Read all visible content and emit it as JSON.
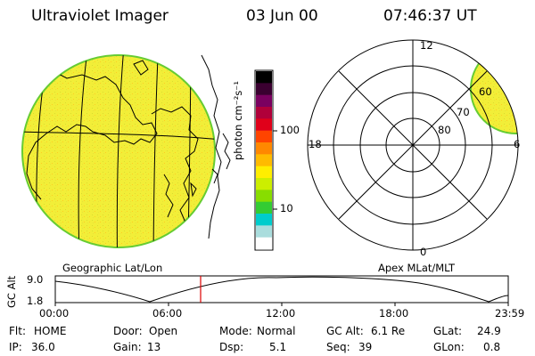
{
  "header": {
    "title": "Ultraviolet Imager",
    "date": "03 Jun 00",
    "time": "07:46:37 UT"
  },
  "colorbar": {
    "unit_label": "photon cm⁻²s⁻¹",
    "ticks": [
      "100",
      "10"
    ],
    "colors": [
      "#000000",
      "#3a0030",
      "#7a0060",
      "#b0003a",
      "#e0001a",
      "#ff4400",
      "#ff8800",
      "#ffbb00",
      "#ffee00",
      "#ccee00",
      "#88dd00",
      "#33cc33",
      "#00cccc",
      "#aadddd",
      "#ffffff"
    ]
  },
  "left_panel": {
    "caption": "Geographic Lat/Lon",
    "fill_color": "#f2ee38",
    "edge_color": "#66cc33"
  },
  "right_panel": {
    "caption": "Apex MLat/MLT",
    "mlt_labels": {
      "top": "12",
      "bottom": "0",
      "left": "18",
      "right": "6"
    },
    "mlat_labels": [
      "60",
      "70",
      "80"
    ]
  },
  "timeline": {
    "ylabel": "GC Alt",
    "y_ticks": [
      "9.0",
      "1.8"
    ],
    "x_ticks": [
      "00:00",
      "06:00",
      "12:00",
      "18:00",
      "23:59"
    ],
    "marker_color": "#dd0000"
  },
  "status": {
    "flt_label": "Flt:",
    "flt_value": "HOME",
    "ip_label": "IP:",
    "ip_value": "36.0",
    "door_label": "Door:",
    "door_value": "Open",
    "gain_label": "Gain:",
    "gain_value": "13",
    "mode_label": "Mode:",
    "mode_value": "Normal",
    "dsp_label": "Dsp:",
    "dsp_value": "5.1",
    "gcalt_label": "GC Alt:",
    "gcalt_value": "6.1 Re",
    "seq_label": "Seq:",
    "seq_value": "39",
    "glat_label": "GLat:",
    "glat_value": "24.9",
    "glon_label": "GLon:",
    "glon_value": "0.8"
  }
}
